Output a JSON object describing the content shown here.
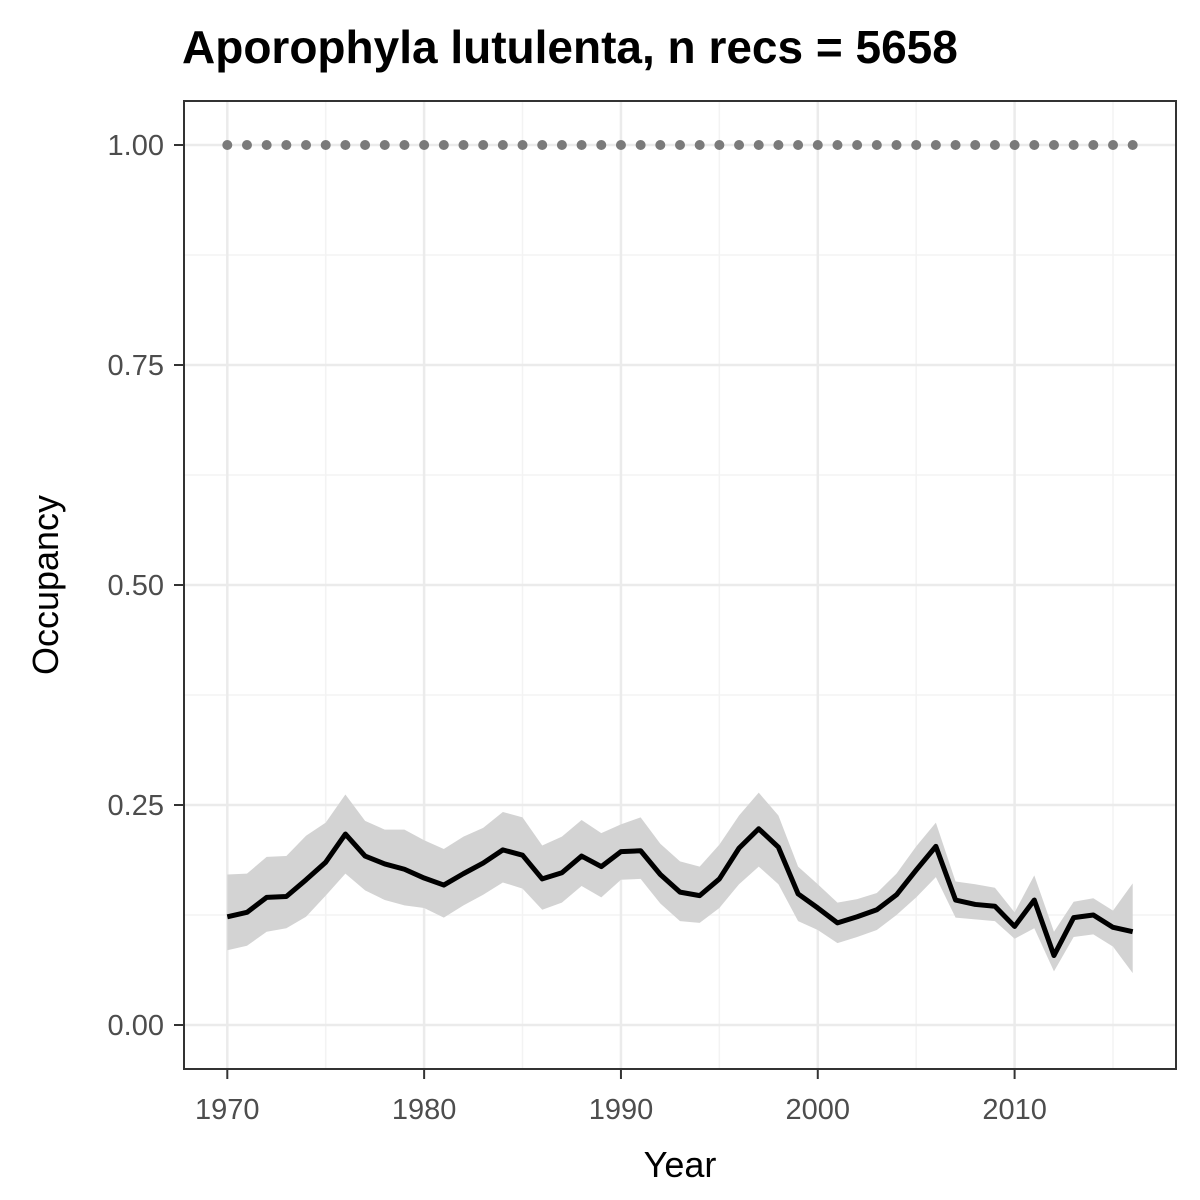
{
  "chart_data": {
    "type": "line",
    "title": "Aporophyla lutulenta, n recs = 5658",
    "xlabel": "Year",
    "ylabel": "Occupancy",
    "xlim": [
      1967.8,
      2018.2
    ],
    "ylim": [
      -0.05,
      1.05
    ],
    "x_ticks": [
      1970,
      1980,
      1990,
      2000,
      2010
    ],
    "y_ticks": [
      0.0,
      0.25,
      0.5,
      0.75,
      1.0
    ],
    "x_tick_labels": [
      "1970",
      "1980",
      "1990",
      "2000",
      "2010"
    ],
    "y_tick_labels": [
      "0.00",
      "0.25",
      "0.50",
      "0.75",
      "1.00"
    ],
    "grid": true,
    "x": [
      1970,
      1971,
      1972,
      1973,
      1974,
      1975,
      1976,
      1977,
      1978,
      1979,
      1980,
      1981,
      1982,
      1983,
      1984,
      1985,
      1986,
      1987,
      1988,
      1989,
      1990,
      1991,
      1992,
      1993,
      1994,
      1995,
      1996,
      1997,
      1998,
      1999,
      2000,
      2001,
      2002,
      2003,
      2004,
      2005,
      2006,
      2007,
      2008,
      2009,
      2010,
      2011,
      2012,
      2013,
      2014,
      2015,
      2016
    ],
    "series": [
      {
        "values": [
          0.123,
          0.128,
          0.145,
          0.146,
          0.165,
          0.185,
          0.217,
          0.192,
          0.183,
          0.177,
          0.167,
          0.159,
          0.172,
          0.184,
          0.199,
          0.193,
          0.166,
          0.173,
          0.192,
          0.18,
          0.197,
          0.198,
          0.171,
          0.151,
          0.147,
          0.166,
          0.201,
          0.223,
          0.202,
          0.149,
          0.133,
          0.116,
          0.123,
          0.131,
          0.148,
          0.176,
          0.203,
          0.142,
          0.137,
          0.135,
          0.112,
          0.142,
          0.079,
          0.122,
          0.125,
          0.111,
          0.106
        ],
        "lower": [
          0.085,
          0.09,
          0.106,
          0.11,
          0.123,
          0.147,
          0.172,
          0.153,
          0.142,
          0.136,
          0.133,
          0.122,
          0.136,
          0.148,
          0.162,
          0.155,
          0.131,
          0.139,
          0.158,
          0.145,
          0.165,
          0.166,
          0.138,
          0.118,
          0.116,
          0.133,
          0.16,
          0.18,
          0.16,
          0.118,
          0.108,
          0.093,
          0.1,
          0.108,
          0.125,
          0.145,
          0.168,
          0.122,
          0.12,
          0.118,
          0.098,
          0.11,
          0.061,
          0.1,
          0.103,
          0.089,
          0.059
        ],
        "upper": [
          0.171,
          0.172,
          0.191,
          0.192,
          0.215,
          0.23,
          0.262,
          0.232,
          0.222,
          0.222,
          0.21,
          0.2,
          0.214,
          0.224,
          0.242,
          0.236,
          0.204,
          0.214,
          0.233,
          0.218,
          0.228,
          0.236,
          0.206,
          0.186,
          0.18,
          0.205,
          0.238,
          0.264,
          0.238,
          0.18,
          0.16,
          0.139,
          0.143,
          0.15,
          0.172,
          0.203,
          0.23,
          0.163,
          0.16,
          0.156,
          0.128,
          0.17,
          0.106,
          0.14,
          0.144,
          0.13,
          0.161
        ]
      },
      {
        "values": [
          1,
          1,
          1,
          1,
          1,
          1,
          1,
          1,
          1,
          1,
          1,
          1,
          1,
          1,
          1,
          1,
          1,
          1,
          1,
          1,
          1,
          1,
          1,
          1,
          1,
          1,
          1,
          1,
          1,
          1,
          1,
          1,
          1,
          1,
          1,
          1,
          1,
          1,
          1,
          1,
          1,
          1,
          1,
          1,
          1,
          1,
          1
        ],
        "style": "dotted"
      }
    ],
    "colors": {
      "line": "#000000",
      "ribbon": "#d3d3d3",
      "dotted": "#7a7a7a",
      "grid_major": "#ebebeb",
      "grid_minor": "#f3f3f3",
      "panel_border": "#333333",
      "tick_label": "#4d4d4d"
    }
  }
}
